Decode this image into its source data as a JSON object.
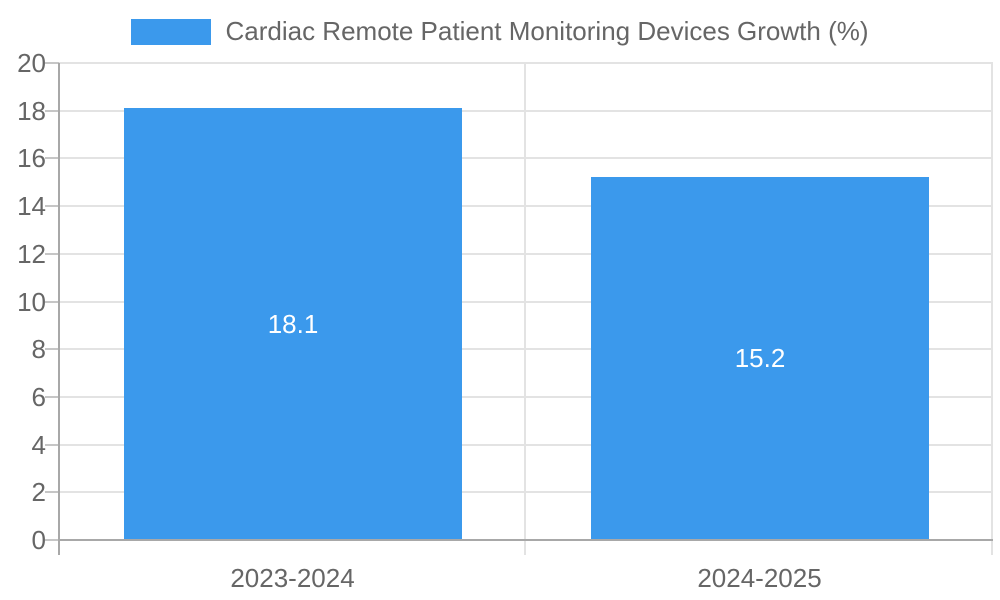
{
  "chart_data": {
    "type": "bar",
    "title": "Cardiac Remote Patient Monitoring Devices Growth (%)",
    "categories": [
      "2023-2024",
      "2024-2025"
    ],
    "values": [
      18.1,
      15.2
    ],
    "value_labels": [
      "18.1",
      "15.2"
    ],
    "xlabel": "",
    "ylabel": "",
    "ylim": [
      0,
      20
    ],
    "ytick_step": 2,
    "ytick_labels": [
      "0",
      "2",
      "4",
      "6",
      "8",
      "10",
      "12",
      "14",
      "16",
      "18",
      "20"
    ],
    "grid": true,
    "legend_position": "top-center",
    "colors": {
      "bar": "#3b99ec",
      "gridline": "#e3e3e3",
      "axis_line": "#a8a8a8",
      "tick_text": "#666666",
      "bar_value_text": "#ffffff",
      "background": "#ffffff"
    }
  }
}
